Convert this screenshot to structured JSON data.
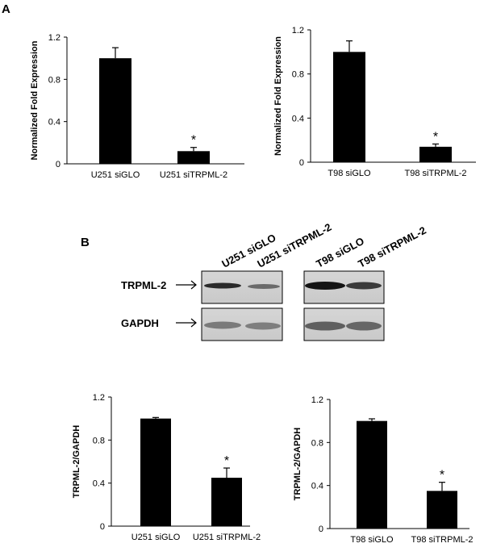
{
  "panels": {
    "a": "A",
    "b": "B"
  },
  "blot": {
    "lanes": [
      "U251 siGLO",
      "U251 siTRPML-2",
      "T98 siGLO",
      "T98 siTRPML-2"
    ],
    "rows": [
      "TRPML-2",
      "GAPDH"
    ],
    "arrow": "→"
  },
  "chart_data": [
    {
      "type": "bar",
      "categories": [
        "U251 siGLO",
        "U251 siTRPML-2"
      ],
      "values": [
        1.0,
        0.12
      ],
      "errors": [
        0.1,
        0.035
      ],
      "annotations": [
        "",
        "*"
      ],
      "ylabel": "Normalized Fold Expression",
      "ylim": [
        0,
        1.2
      ],
      "yticks": [
        "0",
        "0.4",
        "0.8",
        "1.2"
      ],
      "bar_color": "#000000"
    },
    {
      "type": "bar",
      "categories": [
        "T98 siGLO",
        "T98 siTRPML-2"
      ],
      "values": [
        1.0,
        0.14
      ],
      "errors": [
        0.1,
        0.025
      ],
      "annotations": [
        "",
        "*"
      ],
      "ylabel": "Normalized Fold Expression",
      "ylim": [
        0,
        1.2
      ],
      "yticks": [
        "0",
        "0.4",
        "0.8",
        "1.2"
      ],
      "bar_color": "#000000"
    },
    {
      "type": "bar",
      "categories": [
        "U251 siGLO",
        "U251 siTRPML-2"
      ],
      "values": [
        1.0,
        0.45
      ],
      "errors": [
        0.01,
        0.09
      ],
      "annotations": [
        "",
        "*"
      ],
      "ylabel": "TRPML-2/GAPDH",
      "ylim": [
        0,
        1.2
      ],
      "yticks": [
        "0",
        "0.4",
        "0.8",
        "1.2"
      ],
      "bar_color": "#000000"
    },
    {
      "type": "bar",
      "categories": [
        "T98 siGLO",
        "T98 siTRPML-2"
      ],
      "values": [
        1.0,
        0.35
      ],
      "errors": [
        0.02,
        0.08
      ],
      "annotations": [
        "",
        "*"
      ],
      "ylabel": "TRPML-2/GAPDH",
      "ylim": [
        0,
        1.2
      ],
      "yticks": [
        "0",
        "0.4",
        "0.8",
        "1.2"
      ],
      "bar_color": "#000000"
    }
  ]
}
